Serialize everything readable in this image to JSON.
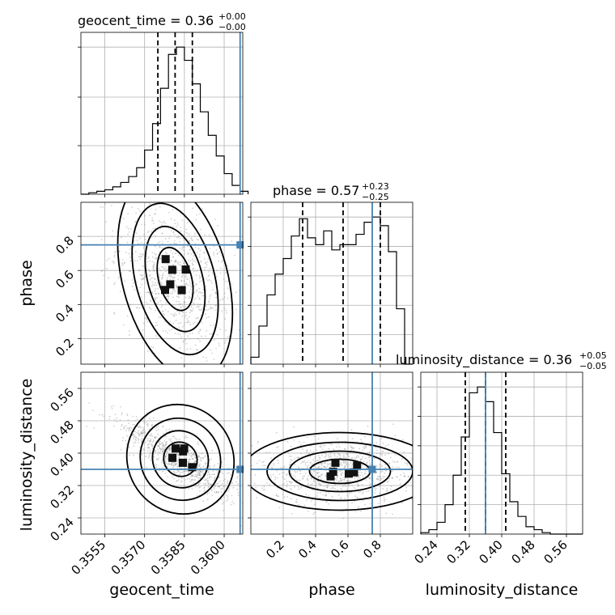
{
  "chart_data": {
    "type": "corner",
    "parameters": [
      "geocent_time",
      "phase",
      "luminosity_distance"
    ],
    "colors": {
      "truth": "#4682b4",
      "hist": "#000000",
      "grid": "#b0b0b0",
      "points": "#9a9a9a"
    },
    "grid": true,
    "truths": {
      "geocent_time": 0.3606,
      "phase": 0.75,
      "luminosity_distance": 0.36
    },
    "diagonal": [
      {
        "parameter": "geocent_time",
        "title": "geocent_time = 0.36",
        "title_upper": "+0.00",
        "title_lower": "−0.00",
        "xlim": [
          0.3546,
          0.3607
        ],
        "quantiles": [
          0.3575,
          0.35815,
          0.3588
        ],
        "bins_x": [
          0.3546,
          0.3549,
          0.3552,
          0.3555,
          0.3558,
          0.3561,
          0.3564,
          0.3567,
          0.357,
          0.3573,
          0.3576,
          0.3579,
          0.3582,
          0.3585,
          0.3588,
          0.3591,
          0.3594,
          0.3597,
          0.36,
          0.3603,
          0.3606,
          0.3609
        ],
        "counts": [
          0,
          1,
          2,
          3,
          5,
          8,
          12,
          18,
          30,
          48,
          72,
          95,
          100,
          91,
          75,
          56,
          40,
          26,
          14,
          6,
          2
        ],
        "y_ticks": [
          0.33,
          0.66,
          1.0
        ]
      },
      {
        "parameter": "phase",
        "title": "phase = 0.57",
        "title_upper": "+0.23",
        "title_lower": "−0.25",
        "xlim": [
          0.0,
          1.0
        ],
        "quantiles": [
          0.32,
          0.57,
          0.8
        ],
        "bins_x": [
          0.0,
          0.05,
          0.1,
          0.15,
          0.2,
          0.25,
          0.3,
          0.35,
          0.4,
          0.45,
          0.5,
          0.55,
          0.6,
          0.65,
          0.7,
          0.75,
          0.8,
          0.85,
          0.9,
          0.95,
          1.0
        ],
        "counts": [
          4,
          22,
          40,
          52,
          61,
          74,
          84,
          73,
          69,
          77,
          66,
          69,
          69,
          75,
          82,
          85,
          80,
          65,
          32,
          0
        ],
        "y_ticks": [
          0.2,
          0.4,
          0.6,
          0.8,
          1.0
        ]
      },
      {
        "parameter": "luminosity_distance",
        "title": "luminosity_distance = 0.36",
        "title_upper": "+0.05",
        "title_lower": "−0.05",
        "xlim": [
          0.2,
          0.6
        ],
        "quantiles": [
          0.31,
          0.36,
          0.41
        ],
        "bins_x": [
          0.2,
          0.22,
          0.24,
          0.26,
          0.28,
          0.3,
          0.32,
          0.34,
          0.36,
          0.38,
          0.4,
          0.42,
          0.44,
          0.46,
          0.48,
          0.5,
          0.52,
          0.54,
          0.56,
          0.58,
          0.6
        ],
        "counts": [
          1,
          3,
          8,
          20,
          40,
          66,
          96,
          100,
          90,
          69,
          41,
          22,
          12,
          5,
          3,
          1,
          0,
          0,
          0,
          0
        ],
        "y_ticks": [
          0.2,
          0.4,
          0.6,
          0.8,
          1.0
        ]
      }
    ],
    "pairs": [
      {
        "x": "geocent_time",
        "y": "phase",
        "xlim": [
          0.3546,
          0.3607
        ],
        "ylim": [
          0.05,
          1.0
        ],
        "center": [
          0.35815,
          0.55
        ],
        "spread": [
          0.0011,
          0.22
        ],
        "slope": -0.4
      },
      {
        "x": "geocent_time",
        "y": "luminosity_distance",
        "xlim": [
          0.3546,
          0.3607
        ],
        "ylim": [
          0.2,
          0.6
        ],
        "center": [
          0.35835,
          0.385
        ],
        "spread": [
          0.0011,
          0.05
        ],
        "slope": -0.85
      },
      {
        "x": "phase",
        "y": "luminosity_distance",
        "xlim": [
          0.0,
          1.0
        ],
        "ylim": [
          0.2,
          0.6
        ],
        "center": [
          0.55,
          0.355
        ],
        "spread": [
          0.25,
          0.04
        ],
        "slope": 0.0
      }
    ],
    "axes": {
      "geocent_time": {
        "label": "geocent_time",
        "ticks": [
          0.3555,
          0.357,
          0.3585,
          0.36
        ],
        "tick_labels": [
          "0.3555",
          "0.3570",
          "0.3585",
          "0.3600"
        ]
      },
      "phase_x": {
        "label": "phase",
        "ticks": [
          0.2,
          0.4,
          0.6,
          0.8
        ],
        "tick_labels": [
          "0.2",
          "0.4",
          "0.6",
          "0.8"
        ]
      },
      "phase_y": {
        "label": "phase",
        "ticks": [
          0.2,
          0.4,
          0.6,
          0.8
        ],
        "tick_labels": [
          "0.2",
          "0.4",
          "0.6",
          "0.8"
        ]
      },
      "luminosity_distance_x": {
        "label": "luminosity_distance",
        "ticks": [
          0.24,
          0.32,
          0.4,
          0.48,
          0.56
        ],
        "tick_labels": [
          "0.24",
          "0.32",
          "0.40",
          "0.48",
          "0.56"
        ]
      },
      "luminosity_distance_y": {
        "label": "luminosity_distance",
        "ticks": [
          0.24,
          0.32,
          0.4,
          0.48,
          0.56
        ],
        "tick_labels": [
          "0.24",
          "0.32",
          "0.40",
          "0.48",
          "0.56"
        ]
      }
    }
  }
}
